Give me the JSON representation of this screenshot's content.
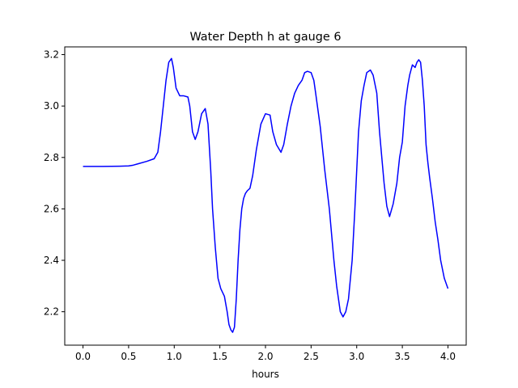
{
  "chart_data": {
    "type": "line",
    "title": "Water Depth h at gauge 6",
    "xlabel": "hours",
    "ylabel": "",
    "xlim": [
      -0.2,
      4.2
    ],
    "ylim": [
      2.07,
      3.23
    ],
    "xticks": [
      0.0,
      0.5,
      1.0,
      1.5,
      2.0,
      2.5,
      3.0,
      3.5,
      4.0
    ],
    "xtick_labels": [
      "0.0",
      "0.5",
      "1.0",
      "1.5",
      "2.0",
      "2.5",
      "3.0",
      "3.5",
      "4.0"
    ],
    "yticks": [
      2.2,
      2.4,
      2.6,
      2.8,
      3.0,
      3.2
    ],
    "ytick_labels": [
      "2.2",
      "2.4",
      "2.6",
      "2.8",
      "3.0",
      "3.2"
    ],
    "grid": false,
    "series": [
      {
        "color": "#0000ff",
        "x": [
          0.0,
          0.2,
          0.4,
          0.5,
          0.55,
          0.6,
          0.7,
          0.78,
          0.82,
          0.85,
          0.88,
          0.91,
          0.94,
          0.97,
          0.99,
          1.02,
          1.06,
          1.1,
          1.15,
          1.17,
          1.2,
          1.23,
          1.26,
          1.3,
          1.34,
          1.37,
          1.4,
          1.42,
          1.45,
          1.48,
          1.51,
          1.55,
          1.58,
          1.6,
          1.62,
          1.64,
          1.66,
          1.68,
          1.7,
          1.72,
          1.74,
          1.76,
          1.78,
          1.8,
          1.83,
          1.86,
          1.9,
          1.95,
          2.0,
          2.05,
          2.08,
          2.12,
          2.17,
          2.2,
          2.24,
          2.28,
          2.32,
          2.36,
          2.4,
          2.43,
          2.46,
          2.5,
          2.53,
          2.55,
          2.6,
          2.65,
          2.7,
          2.75,
          2.78,
          2.82,
          2.85,
          2.88,
          2.91,
          2.95,
          2.98,
          3.02,
          3.05,
          3.08,
          3.11,
          3.15,
          3.18,
          3.22,
          3.25,
          3.28,
          3.3,
          3.33,
          3.36,
          3.4,
          3.44,
          3.47,
          3.5,
          3.53,
          3.56,
          3.58,
          3.61,
          3.64,
          3.66,
          3.68,
          3.7,
          3.72,
          3.74,
          3.76,
          3.78,
          3.8,
          3.83,
          3.86,
          3.89,
          3.92,
          3.96,
          4.0
        ],
        "y": [
          2.765,
          2.765,
          2.766,
          2.767,
          2.77,
          2.775,
          2.785,
          2.795,
          2.82,
          2.9,
          3.0,
          3.1,
          3.17,
          3.185,
          3.15,
          3.07,
          3.04,
          3.04,
          3.035,
          3.0,
          2.9,
          2.87,
          2.9,
          2.97,
          2.99,
          2.93,
          2.75,
          2.6,
          2.45,
          2.33,
          2.29,
          2.26,
          2.2,
          2.15,
          2.13,
          2.12,
          2.14,
          2.25,
          2.4,
          2.52,
          2.6,
          2.64,
          2.66,
          2.67,
          2.68,
          2.73,
          2.83,
          2.93,
          2.97,
          2.965,
          2.9,
          2.85,
          2.82,
          2.85,
          2.93,
          3.0,
          3.05,
          3.08,
          3.1,
          3.13,
          3.135,
          3.13,
          3.1,
          3.05,
          2.92,
          2.75,
          2.6,
          2.4,
          2.3,
          2.2,
          2.18,
          2.2,
          2.25,
          2.4,
          2.6,
          2.9,
          3.02,
          3.08,
          3.13,
          3.14,
          3.12,
          3.05,
          2.9,
          2.78,
          2.7,
          2.61,
          2.57,
          2.62,
          2.7,
          2.8,
          2.86,
          3.0,
          3.08,
          3.12,
          3.16,
          3.15,
          3.17,
          3.18,
          3.17,
          3.1,
          3.0,
          2.85,
          2.78,
          2.72,
          2.64,
          2.55,
          2.48,
          2.4,
          2.33,
          2.29
        ]
      }
    ]
  }
}
